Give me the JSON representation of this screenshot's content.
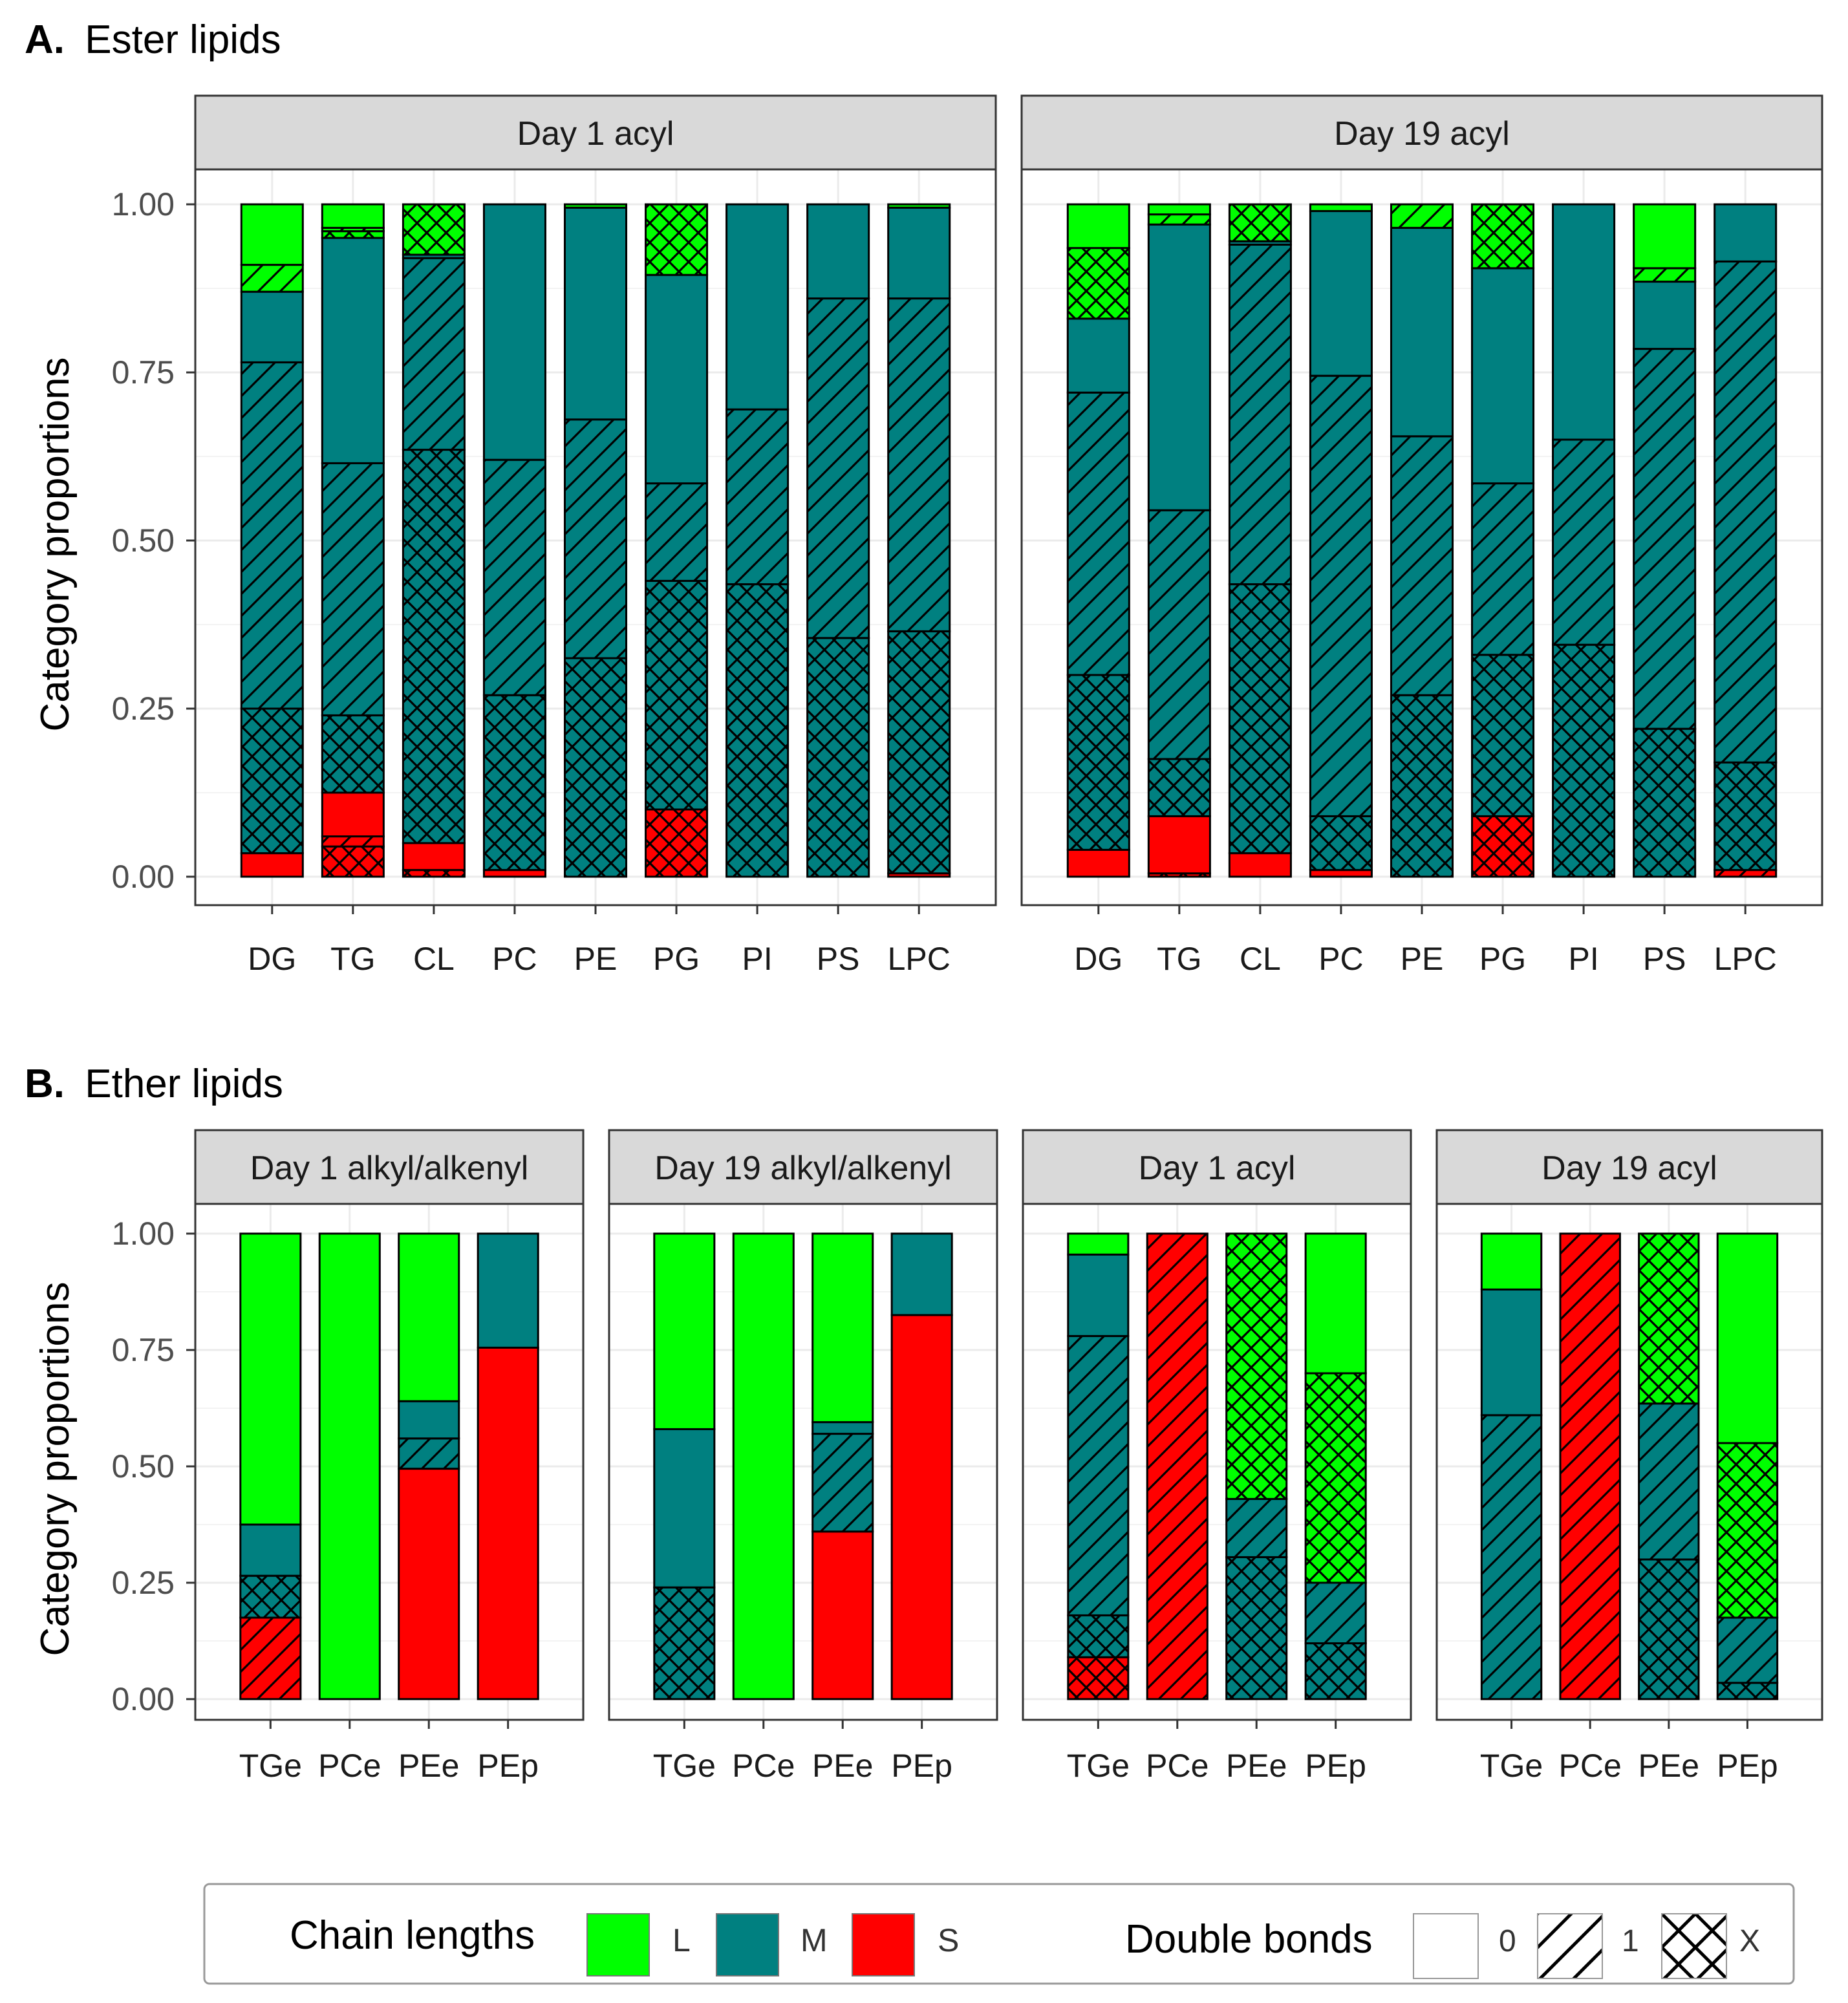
{
  "figure": {
    "panel_a_letter": "A.",
    "panel_a_title": "Ester lipids",
    "panel_b_letter": "B.",
    "panel_b_title": "Ether lipids"
  },
  "colors": {
    "L": "#00ff00",
    "M": "#008080",
    "S": "#ff0000",
    "strip": "#d9d9d9",
    "grid": "#ebebeb"
  },
  "legend": {
    "chain_title": "Chain lengths",
    "chain_items": [
      {
        "key": "L",
        "label": "L"
      },
      {
        "key": "M",
        "label": "M"
      },
      {
        "key": "S",
        "label": "S"
      }
    ],
    "bond_title": "Double bonds",
    "bond_items": [
      {
        "key": "0",
        "label": "0"
      },
      {
        "key": "1",
        "label": "1"
      },
      {
        "key": "X",
        "label": "X"
      }
    ]
  },
  "chart_data": [
    {
      "type": "bar",
      "stacked": true,
      "id": "A",
      "ylabel": "Category proportions",
      "ylim": [
        0,
        1
      ],
      "yticks": [
        "0.00",
        "0.25",
        "0.50",
        "0.75",
        "1.00"
      ],
      "yvalues": [
        0,
        0.25,
        0.5,
        0.75,
        1
      ],
      "facets": [
        {
          "strip": "Day 1 acyl",
          "categories": [
            "DG",
            "TG",
            "CL",
            "PC",
            "PE",
            "PG",
            "PI",
            "PS",
            "LPC"
          ],
          "stacks": [
            [
              {
                "c": "S",
                "b": "0",
                "v": 0.035
              },
              {
                "c": "M",
                "b": "X",
                "v": 0.215
              },
              {
                "c": "M",
                "b": "1",
                "v": 0.515
              },
              {
                "c": "M",
                "b": "0",
                "v": 0.105
              },
              {
                "c": "L",
                "b": "1",
                "v": 0.04
              },
              {
                "c": "L",
                "b": "0",
                "v": 0.09
              }
            ],
            [
              {
                "c": "S",
                "b": "X",
                "v": 0.045
              },
              {
                "c": "S",
                "b": "1",
                "v": 0.015
              },
              {
                "c": "S",
                "b": "0",
                "v": 0.065
              },
              {
                "c": "M",
                "b": "X",
                "v": 0.115
              },
              {
                "c": "M",
                "b": "1",
                "v": 0.375
              },
              {
                "c": "M",
                "b": "0",
                "v": 0.335
              },
              {
                "c": "L",
                "b": "X",
                "v": 0.01
              },
              {
                "c": "L",
                "b": "1",
                "v": 0.005
              },
              {
                "c": "L",
                "b": "0",
                "v": 0.035
              }
            ],
            [
              {
                "c": "S",
                "b": "X",
                "v": 0.01
              },
              {
                "c": "S",
                "b": "0",
                "v": 0.04
              },
              {
                "c": "M",
                "b": "X",
                "v": 0.585
              },
              {
                "c": "M",
                "b": "1",
                "v": 0.285
              },
              {
                "c": "M",
                "b": "0",
                "v": 0.005
              },
              {
                "c": "L",
                "b": "X",
                "v": 0.075
              }
            ],
            [
              {
                "c": "S",
                "b": "0",
                "v": 0.01
              },
              {
                "c": "M",
                "b": "X",
                "v": 0.26
              },
              {
                "c": "M",
                "b": "1",
                "v": 0.35
              },
              {
                "c": "M",
                "b": "0",
                "v": 0.38
              }
            ],
            [
              {
                "c": "M",
                "b": "X",
                "v": 0.325
              },
              {
                "c": "M",
                "b": "1",
                "v": 0.355
              },
              {
                "c": "M",
                "b": "0",
                "v": 0.315
              },
              {
                "c": "L",
                "b": "0",
                "v": 0.005
              }
            ],
            [
              {
                "c": "S",
                "b": "X",
                "v": 0.1
              },
              {
                "c": "M",
                "b": "X",
                "v": 0.34
              },
              {
                "c": "M",
                "b": "1",
                "v": 0.145
              },
              {
                "c": "M",
                "b": "0",
                "v": 0.31
              },
              {
                "c": "L",
                "b": "X",
                "v": 0.105
              }
            ],
            [
              {
                "c": "M",
                "b": "X",
                "v": 0.435
              },
              {
                "c": "M",
                "b": "1",
                "v": 0.26
              },
              {
                "c": "M",
                "b": "0",
                "v": 0.305
              }
            ],
            [
              {
                "c": "M",
                "b": "X",
                "v": 0.355
              },
              {
                "c": "M",
                "b": "1",
                "v": 0.505
              },
              {
                "c": "M",
                "b": "0",
                "v": 0.14
              }
            ],
            [
              {
                "c": "S",
                "b": "0",
                "v": 0.005
              },
              {
                "c": "M",
                "b": "X",
                "v": 0.36
              },
              {
                "c": "M",
                "b": "1",
                "v": 0.495
              },
              {
                "c": "M",
                "b": "0",
                "v": 0.135
              },
              {
                "c": "L",
                "b": "0",
                "v": 0.005
              }
            ]
          ]
        },
        {
          "strip": "Day 19 acyl",
          "categories": [
            "DG",
            "TG",
            "CL",
            "PC",
            "PE",
            "PG",
            "PI",
            "PS",
            "LPC"
          ],
          "stacks": [
            [
              {
                "c": "S",
                "b": "0",
                "v": 0.04
              },
              {
                "c": "M",
                "b": "X",
                "v": 0.26
              },
              {
                "c": "M",
                "b": "1",
                "v": 0.42
              },
              {
                "c": "M",
                "b": "0",
                "v": 0.11
              },
              {
                "c": "L",
                "b": "X",
                "v": 0.105
              },
              {
                "c": "L",
                "b": "0",
                "v": 0.065
              }
            ],
            [
              {
                "c": "S",
                "b": "X",
                "v": 0.005
              },
              {
                "c": "S",
                "b": "0",
                "v": 0.085
              },
              {
                "c": "M",
                "b": "X",
                "v": 0.085
              },
              {
                "c": "M",
                "b": "1",
                "v": 0.37
              },
              {
                "c": "M",
                "b": "0",
                "v": 0.425
              },
              {
                "c": "L",
                "b": "1",
                "v": 0.015
              },
              {
                "c": "L",
                "b": "0",
                "v": 0.015
              }
            ],
            [
              {
                "c": "S",
                "b": "0",
                "v": 0.035
              },
              {
                "c": "M",
                "b": "X",
                "v": 0.4
              },
              {
                "c": "M",
                "b": "1",
                "v": 0.505
              },
              {
                "c": "M",
                "b": "0",
                "v": 0.005
              },
              {
                "c": "L",
                "b": "X",
                "v": 0.055
              }
            ],
            [
              {
                "c": "S",
                "b": "0",
                "v": 0.01
              },
              {
                "c": "M",
                "b": "X",
                "v": 0.08
              },
              {
                "c": "M",
                "b": "1",
                "v": 0.655
              },
              {
                "c": "M",
                "b": "0",
                "v": 0.245
              },
              {
                "c": "L",
                "b": "0",
                "v": 0.01
              }
            ],
            [
              {
                "c": "M",
                "b": "X",
                "v": 0.27
              },
              {
                "c": "M",
                "b": "1",
                "v": 0.385
              },
              {
                "c": "M",
                "b": "0",
                "v": 0.31
              },
              {
                "c": "L",
                "b": "1",
                "v": 0.035
              }
            ],
            [
              {
                "c": "S",
                "b": "X",
                "v": 0.09
              },
              {
                "c": "M",
                "b": "X",
                "v": 0.24
              },
              {
                "c": "M",
                "b": "1",
                "v": 0.255
              },
              {
                "c": "M",
                "b": "0",
                "v": 0.32
              },
              {
                "c": "L",
                "b": "X",
                "v": 0.095
              }
            ],
            [
              {
                "c": "M",
                "b": "X",
                "v": 0.345
              },
              {
                "c": "M",
                "b": "1",
                "v": 0.305
              },
              {
                "c": "M",
                "b": "0",
                "v": 0.35
              }
            ],
            [
              {
                "c": "M",
                "b": "X",
                "v": 0.22
              },
              {
                "c": "M",
                "b": "1",
                "v": 0.565
              },
              {
                "c": "M",
                "b": "0",
                "v": 0.1
              },
              {
                "c": "L",
                "b": "1",
                "v": 0.02
              },
              {
                "c": "L",
                "b": "0",
                "v": 0.095
              }
            ],
            [
              {
                "c": "S",
                "b": "1",
                "v": 0.01
              },
              {
                "c": "M",
                "b": "X",
                "v": 0.16
              },
              {
                "c": "M",
                "b": "1",
                "v": 0.745
              },
              {
                "c": "M",
                "b": "0",
                "v": 0.085
              }
            ]
          ]
        }
      ]
    },
    {
      "type": "bar",
      "stacked": true,
      "id": "B",
      "ylabel": "Category proportions",
      "ylim": [
        0,
        1
      ],
      "yticks": [
        "0.00",
        "0.25",
        "0.50",
        "0.75",
        "1.00"
      ],
      "yvalues": [
        0,
        0.25,
        0.5,
        0.75,
        1
      ],
      "facets": [
        {
          "strip": "Day 1 alkyl/alkenyl",
          "categories": [
            "TGe",
            "PCe",
            "PEe",
            "PEp"
          ],
          "stacks": [
            [
              {
                "c": "S",
                "b": "1",
                "v": 0.175
              },
              {
                "c": "M",
                "b": "X",
                "v": 0.09
              },
              {
                "c": "M",
                "b": "0",
                "v": 0.11
              },
              {
                "c": "L",
                "b": "0",
                "v": 0.625
              }
            ],
            [
              {
                "c": "L",
                "b": "0",
                "v": 1.0
              }
            ],
            [
              {
                "c": "S",
                "b": "0",
                "v": 0.495
              },
              {
                "c": "M",
                "b": "1",
                "v": 0.065
              },
              {
                "c": "M",
                "b": "0",
                "v": 0.08
              },
              {
                "c": "L",
                "b": "0",
                "v": 0.36
              }
            ],
            [
              {
                "c": "S",
                "b": "0",
                "v": 0.755
              },
              {
                "c": "M",
                "b": "0",
                "v": 0.245
              }
            ]
          ]
        },
        {
          "strip": "Day 19 alkyl/alkenyl",
          "categories": [
            "TGe",
            "PCe",
            "PEe",
            "PEp"
          ],
          "stacks": [
            [
              {
                "c": "M",
                "b": "X",
                "v": 0.24
              },
              {
                "c": "M",
                "b": "0",
                "v": 0.34
              },
              {
                "c": "L",
                "b": "0",
                "v": 0.42
              }
            ],
            [
              {
                "c": "L",
                "b": "0",
                "v": 1.0
              }
            ],
            [
              {
                "c": "S",
                "b": "0",
                "v": 0.36
              },
              {
                "c": "M",
                "b": "1",
                "v": 0.21
              },
              {
                "c": "M",
                "b": "0",
                "v": 0.025
              },
              {
                "c": "L",
                "b": "0",
                "v": 0.405
              }
            ],
            [
              {
                "c": "S",
                "b": "0",
                "v": 0.825
              },
              {
                "c": "M",
                "b": "0",
                "v": 0.175
              }
            ]
          ]
        },
        {
          "strip": "Day 1 acyl",
          "categories": [
            "TGe",
            "PCe",
            "PEe",
            "PEp"
          ],
          "stacks": [
            [
              {
                "c": "S",
                "b": "X",
                "v": 0.09
              },
              {
                "c": "M",
                "b": "X",
                "v": 0.09
              },
              {
                "c": "M",
                "b": "1",
                "v": 0.6
              },
              {
                "c": "M",
                "b": "0",
                "v": 0.175
              },
              {
                "c": "L",
                "b": "0",
                "v": 0.045
              }
            ],
            [
              {
                "c": "S",
                "b": "1",
                "v": 1.0
              }
            ],
            [
              {
                "c": "M",
                "b": "X",
                "v": 0.305
              },
              {
                "c": "M",
                "b": "1",
                "v": 0.125
              },
              {
                "c": "L",
                "b": "X",
                "v": 0.57
              }
            ],
            [
              {
                "c": "M",
                "b": "X",
                "v": 0.12
              },
              {
                "c": "M",
                "b": "1",
                "v": 0.13
              },
              {
                "c": "L",
                "b": "X",
                "v": 0.45
              },
              {
                "c": "L",
                "b": "0",
                "v": 0.3
              }
            ]
          ]
        },
        {
          "strip": "Day 19 acyl",
          "categories": [
            "TGe",
            "PCe",
            "PEe",
            "PEp"
          ],
          "stacks": [
            [
              {
                "c": "M",
                "b": "1",
                "v": 0.61
              },
              {
                "c": "M",
                "b": "0",
                "v": 0.27
              },
              {
                "c": "L",
                "b": "0",
                "v": 0.12
              }
            ],
            [
              {
                "c": "S",
                "b": "1",
                "v": 1.0
              }
            ],
            [
              {
                "c": "M",
                "b": "X",
                "v": 0.3
              },
              {
                "c": "M",
                "b": "1",
                "v": 0.335
              },
              {
                "c": "L",
                "b": "X",
                "v": 0.365
              }
            ],
            [
              {
                "c": "M",
                "b": "X",
                "v": 0.035
              },
              {
                "c": "M",
                "b": "1",
                "v": 0.14
              },
              {
                "c": "L",
                "b": "X",
                "v": 0.375
              },
              {
                "c": "L",
                "b": "0",
                "v": 0.45
              }
            ]
          ]
        }
      ]
    }
  ]
}
